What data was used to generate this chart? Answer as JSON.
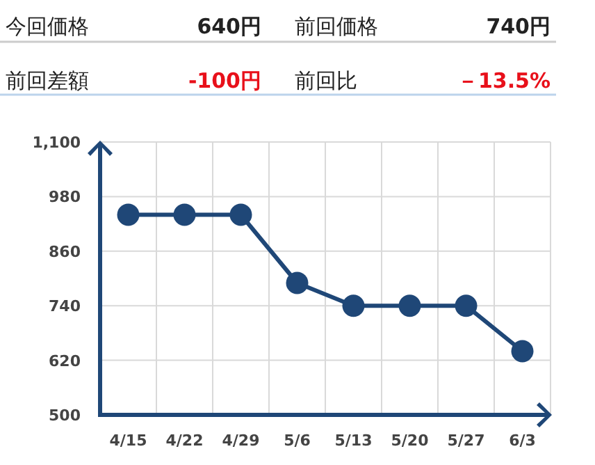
{
  "chart_data": {
    "type": "line",
    "annotations": [
      "今回価格",
      "640円",
      "前回価格",
      "740円",
      "前回差額",
      "-100円",
      "前回比",
      "－13.5%"
    ],
    "categories": [
      "4/15",
      "4/22",
      "4/29",
      "5/6",
      "5/13",
      "5/20",
      "5/27",
      "6/3"
    ],
    "series": [
      {
        "color": "#1f4777",
        "values": [
          940,
          940,
          940,
          790,
          740,
          740,
          740,
          640
        ]
      }
    ],
    "ylim": [
      500,
      1100
    ],
    "yticks": [
      500,
      620,
      740,
      860,
      980,
      {
        "value": 1100,
        "label": "1,100"
      }
    ],
    "grid": true,
    "marker": "circle",
    "line_style": "solid"
  }
}
